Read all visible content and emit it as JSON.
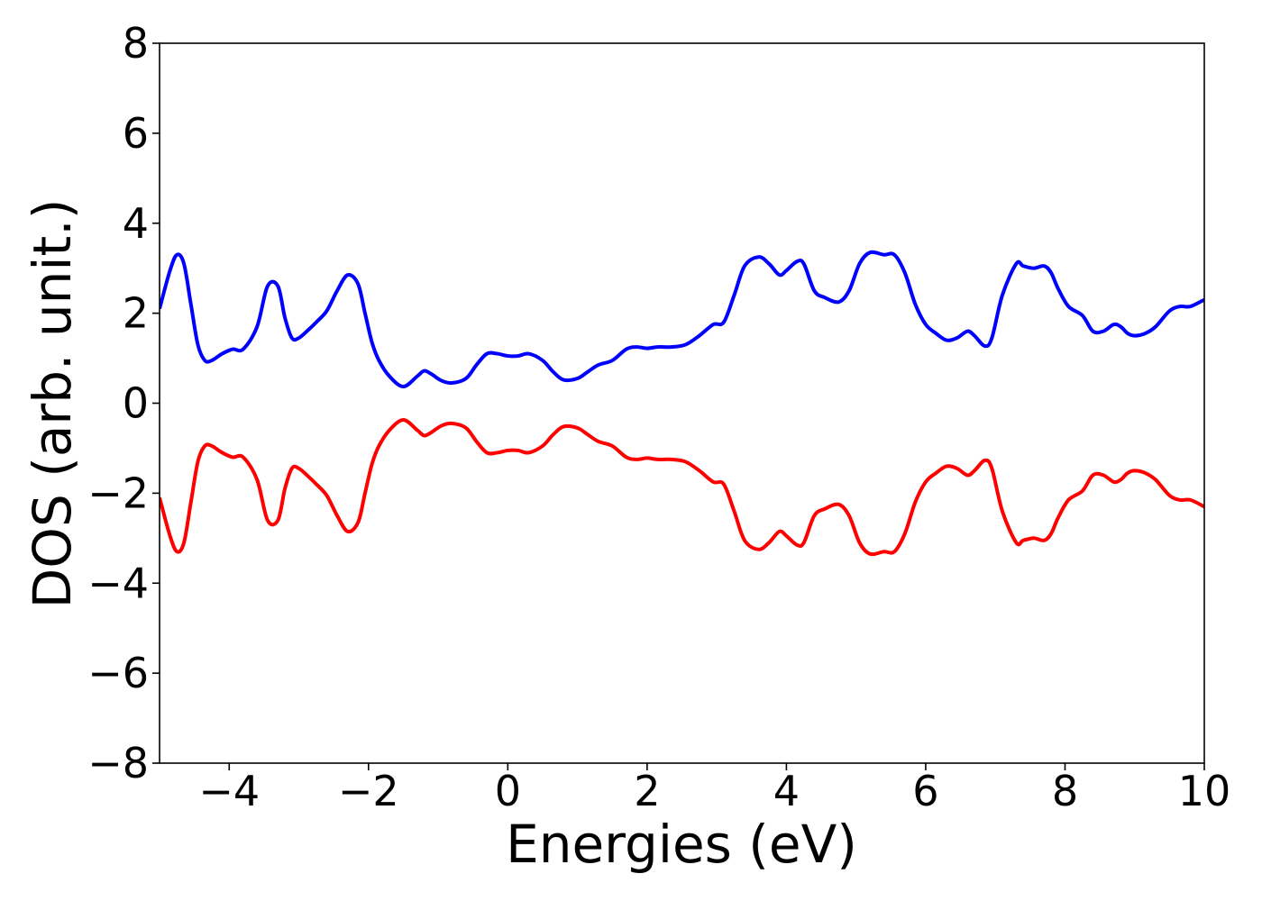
{
  "chart_data": {
    "type": "line",
    "title": "",
    "xlabel": "Energies (eV)",
    "ylabel": "DOS (arb. unit.)",
    "xlim": [
      -5,
      10
    ],
    "ylim": [
      -8,
      8
    ],
    "xticks": [
      -4,
      -2,
      0,
      2,
      4,
      6,
      8,
      10
    ],
    "yticks": [
      -8,
      -6,
      -4,
      -2,
      0,
      2,
      4,
      6,
      8
    ],
    "xtick_labels": [
      "−4",
      "−2",
      "0",
      "2",
      "4",
      "6",
      "8",
      "10"
    ],
    "ytick_labels": [
      "−8",
      "−6",
      "−4",
      "−2",
      "0",
      "2",
      "4",
      "6",
      "8"
    ],
    "grid": false,
    "legend": "none",
    "series": [
      {
        "color": "#0000ff",
        "x": [
          -5.0,
          -4.85,
          -4.75,
          -4.65,
          -4.55,
          -4.45,
          -4.35,
          -4.25,
          -4.1,
          -3.95,
          -3.8,
          -3.6,
          -3.45,
          -3.3,
          -3.2,
          -3.1,
          -3.0,
          -2.85,
          -2.75,
          -2.6,
          -2.45,
          -2.3,
          -2.15,
          -2.05,
          -1.95,
          -1.85,
          -1.7,
          -1.5,
          -1.3,
          -1.2,
          -1.1,
          -0.95,
          -0.8,
          -0.6,
          -0.45,
          -0.3,
          -0.15,
          0.0,
          0.15,
          0.3,
          0.5,
          0.65,
          0.8,
          1.0,
          1.15,
          1.3,
          1.5,
          1.7,
          1.85,
          2.0,
          2.15,
          2.35,
          2.55,
          2.75,
          2.95,
          3.1,
          3.25,
          3.4,
          3.6,
          3.75,
          3.9,
          4.0,
          4.15,
          4.25,
          4.4,
          4.55,
          4.75,
          4.9,
          5.05,
          5.2,
          5.4,
          5.55,
          5.7,
          5.85,
          6.0,
          6.15,
          6.3,
          6.45,
          6.6,
          6.7,
          6.85,
          6.95,
          7.1,
          7.3,
          7.4,
          7.55,
          7.7,
          7.8,
          7.9,
          8.05,
          8.25,
          8.4,
          8.55,
          8.7,
          8.8,
          8.9,
          9.0,
          9.15,
          9.3,
          9.5,
          9.65,
          9.8,
          10.0
        ],
        "y": [
          2.1,
          2.95,
          3.3,
          3.1,
          2.2,
          1.3,
          0.95,
          0.95,
          1.1,
          1.2,
          1.2,
          1.7,
          2.6,
          2.6,
          1.9,
          1.45,
          1.45,
          1.65,
          1.8,
          2.05,
          2.5,
          2.85,
          2.65,
          2.0,
          1.35,
          0.95,
          0.6,
          0.37,
          0.6,
          0.72,
          0.65,
          0.5,
          0.45,
          0.55,
          0.85,
          1.1,
          1.1,
          1.05,
          1.05,
          1.1,
          0.95,
          0.7,
          0.52,
          0.55,
          0.7,
          0.85,
          0.95,
          1.2,
          1.25,
          1.22,
          1.25,
          1.25,
          1.3,
          1.5,
          1.75,
          1.8,
          2.4,
          3.05,
          3.25,
          3.1,
          2.85,
          2.95,
          3.15,
          3.1,
          2.5,
          2.35,
          2.25,
          2.5,
          3.1,
          3.35,
          3.3,
          3.3,
          2.9,
          2.2,
          1.75,
          1.55,
          1.4,
          1.45,
          1.6,
          1.5,
          1.27,
          1.45,
          2.4,
          3.1,
          3.05,
          3.0,
          3.05,
          2.9,
          2.55,
          2.15,
          1.95,
          1.6,
          1.6,
          1.75,
          1.7,
          1.55,
          1.5,
          1.55,
          1.7,
          2.05,
          2.15,
          2.15,
          2.3
        ]
      },
      {
        "color": "#ff0000",
        "x": [
          -5.0,
          -4.85,
          -4.75,
          -4.65,
          -4.55,
          -4.45,
          -4.35,
          -4.25,
          -4.1,
          -3.95,
          -3.8,
          -3.6,
          -3.45,
          -3.3,
          -3.2,
          -3.1,
          -3.0,
          -2.85,
          -2.75,
          -2.6,
          -2.45,
          -2.3,
          -2.15,
          -2.05,
          -1.95,
          -1.85,
          -1.7,
          -1.5,
          -1.3,
          -1.2,
          -1.1,
          -0.95,
          -0.8,
          -0.6,
          -0.45,
          -0.3,
          -0.15,
          0.0,
          0.15,
          0.3,
          0.5,
          0.65,
          0.8,
          1.0,
          1.15,
          1.3,
          1.5,
          1.7,
          1.85,
          2.0,
          2.15,
          2.35,
          2.55,
          2.75,
          2.95,
          3.1,
          3.25,
          3.4,
          3.6,
          3.75,
          3.9,
          4.0,
          4.15,
          4.25,
          4.4,
          4.55,
          4.75,
          4.9,
          5.05,
          5.2,
          5.4,
          5.55,
          5.7,
          5.85,
          6.0,
          6.15,
          6.3,
          6.45,
          6.6,
          6.7,
          6.85,
          6.95,
          7.1,
          7.3,
          7.4,
          7.55,
          7.7,
          7.8,
          7.9,
          8.05,
          8.25,
          8.4,
          8.55,
          8.7,
          8.8,
          8.9,
          9.0,
          9.15,
          9.3,
          9.5,
          9.65,
          9.8,
          10.0
        ],
        "y": [
          -2.1,
          -2.95,
          -3.3,
          -3.1,
          -2.2,
          -1.3,
          -0.95,
          -0.95,
          -1.1,
          -1.2,
          -1.2,
          -1.7,
          -2.6,
          -2.6,
          -1.9,
          -1.45,
          -1.45,
          -1.65,
          -1.8,
          -2.05,
          -2.5,
          -2.85,
          -2.65,
          -2.0,
          -1.35,
          -0.95,
          -0.6,
          -0.37,
          -0.6,
          -0.72,
          -0.65,
          -0.5,
          -0.45,
          -0.55,
          -0.85,
          -1.1,
          -1.1,
          -1.05,
          -1.05,
          -1.1,
          -0.95,
          -0.7,
          -0.52,
          -0.55,
          -0.7,
          -0.85,
          -0.95,
          -1.2,
          -1.25,
          -1.22,
          -1.25,
          -1.25,
          -1.3,
          -1.5,
          -1.75,
          -1.8,
          -2.4,
          -3.05,
          -3.25,
          -3.1,
          -2.85,
          -2.95,
          -3.15,
          -3.1,
          -2.5,
          -2.35,
          -2.25,
          -2.5,
          -3.1,
          -3.35,
          -3.3,
          -3.3,
          -2.9,
          -2.2,
          -1.75,
          -1.55,
          -1.4,
          -1.45,
          -1.6,
          -1.5,
          -1.27,
          -1.45,
          -2.4,
          -3.1,
          -3.05,
          -3.0,
          -3.05,
          -2.9,
          -2.55,
          -2.15,
          -1.95,
          -1.6,
          -1.6,
          -1.75,
          -1.7,
          -1.55,
          -1.5,
          -1.55,
          -1.7,
          -2.05,
          -2.15,
          -2.15,
          -2.3
        ]
      }
    ]
  }
}
